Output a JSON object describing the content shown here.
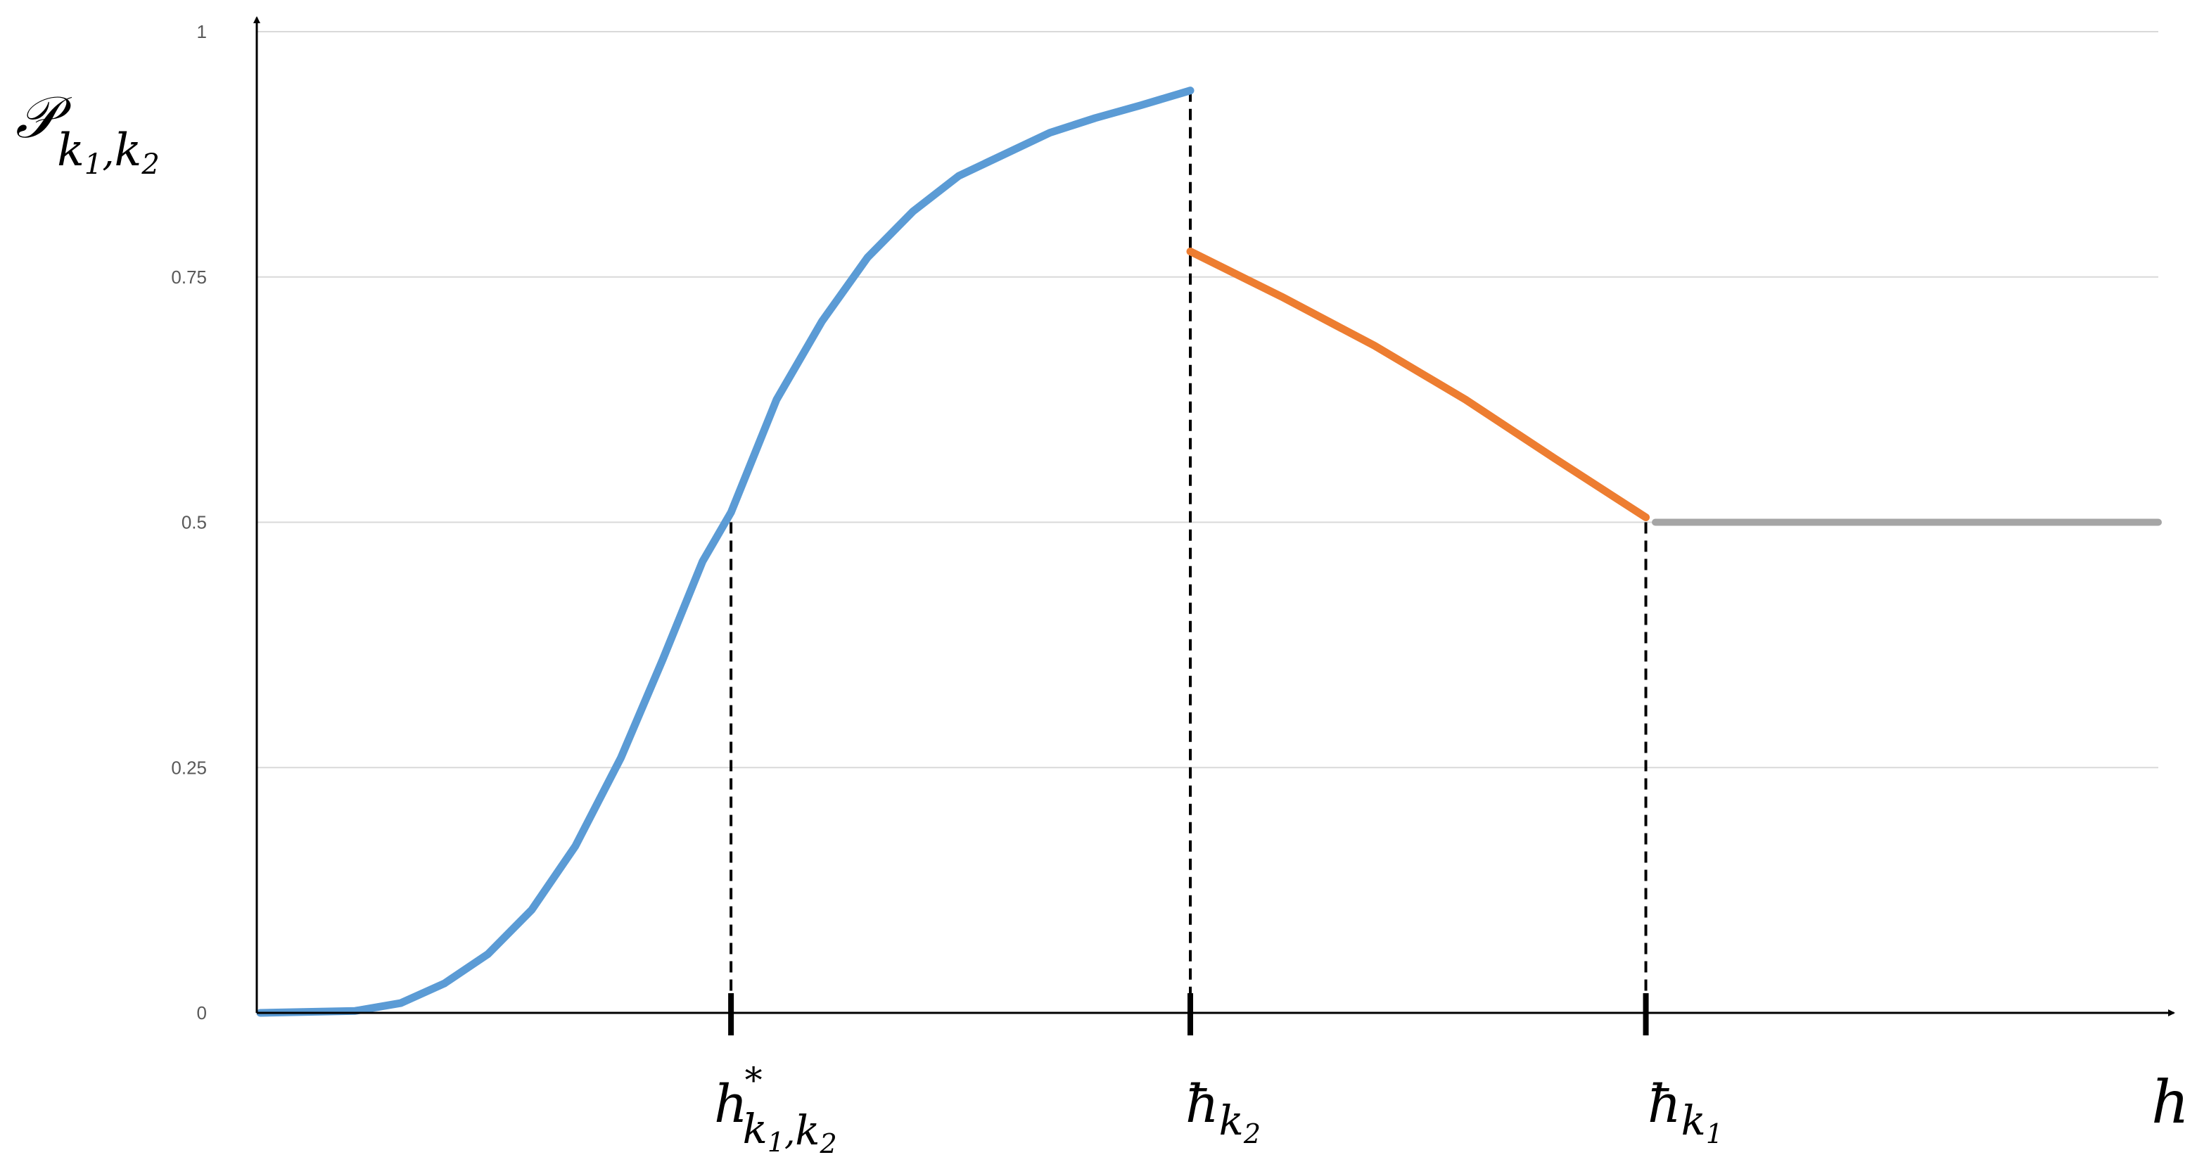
{
  "chart_data": {
    "type": "line",
    "title": "",
    "ylabel": {
      "main": "𝒫",
      "sub1": "k",
      "subsub1": "1",
      "comma": ",",
      "sub2": "k",
      "subsub2": "2"
    },
    "xlabel": "h",
    "ylim": [
      0,
      1
    ],
    "xlim": [
      0,
      1
    ],
    "yticks": [
      0,
      0.25,
      0.5,
      0.75,
      1
    ],
    "ytick_labels": [
      "0",
      "0.25",
      "0.5",
      "0.75",
      "1"
    ],
    "grid": true,
    "marked_points": [
      {
        "id": "h-star",
        "x": 0.248,
        "y": 0.5,
        "main": "h",
        "sup": "*",
        "sub1": "k",
        "subsub1": "1",
        "comma": ",",
        "sub2": "k",
        "subsub2": "2"
      },
      {
        "id": "hbar-k2",
        "x": 0.49,
        "y": 0.94,
        "main": "ħ",
        "sub1": "k",
        "subsub1": "2"
      },
      {
        "id": "hbar-k1",
        "x": 0.73,
        "y": 0.5,
        "main": "ħ",
        "sub1": "k",
        "subsub1": "1"
      }
    ],
    "series": [
      {
        "color": "#5B9BD5",
        "x": [
          0.0,
          0.05,
          0.074,
          0.097,
          0.12,
          0.143,
          0.166,
          0.19,
          0.212,
          0.233,
          0.248,
          0.272,
          0.296,
          0.32,
          0.344,
          0.368,
          0.392,
          0.416,
          0.44,
          0.464,
          0.49
        ],
        "y": [
          0.0,
          0.002,
          0.01,
          0.03,
          0.06,
          0.105,
          0.17,
          0.26,
          0.36,
          0.46,
          0.51,
          0.625,
          0.705,
          0.77,
          0.817,
          0.853,
          0.875,
          0.897,
          0.912,
          0.925,
          0.94
        ]
      },
      {
        "color": "#ED7D31",
        "x": [
          0.49,
          0.538,
          0.587,
          0.635,
          0.682,
          0.73
        ],
        "y": [
          0.776,
          0.73,
          0.68,
          0.625,
          0.565,
          0.505
        ]
      },
      {
        "color": "#A5A5A5",
        "x": [
          0.735,
          1.0
        ],
        "y": [
          0.5,
          0.5
        ]
      }
    ]
  }
}
